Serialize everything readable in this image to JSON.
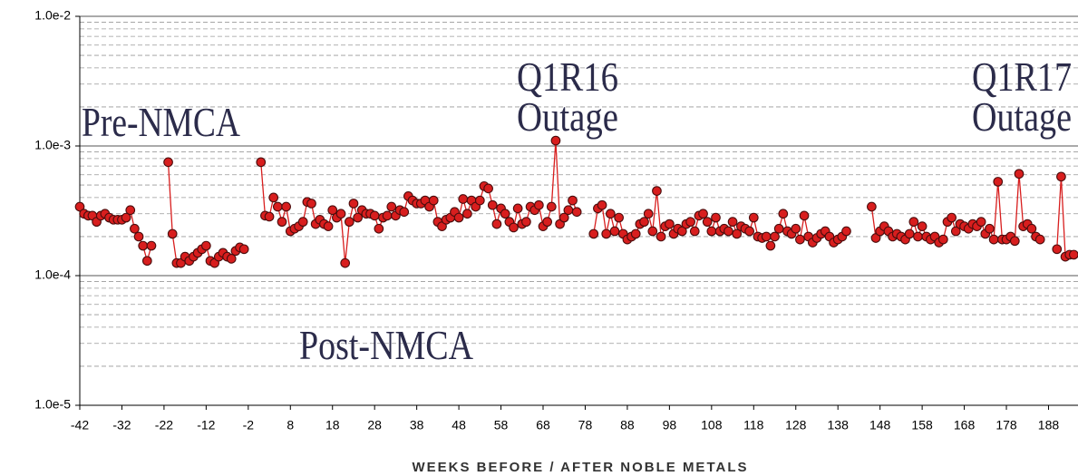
{
  "chart_data": {
    "type": "line",
    "x_label": "WEEKS BEFORE / AFTER NOBLE METALS",
    "xlim": [
      -42,
      195
    ],
    "xticks": [
      -42,
      -32,
      -22,
      -12,
      -2,
      8,
      18,
      28,
      38,
      48,
      58,
      68,
      78,
      88,
      98,
      108,
      118,
      128,
      138,
      148,
      158,
      168,
      178,
      188
    ],
    "ylim": [
      1e-05,
      0.01
    ],
    "yticks": [
      {
        "value": 1e-05,
        "label": "1.0e-5"
      },
      {
        "value": 0.0001,
        "label": "1.0e-4"
      },
      {
        "value": 0.001,
        "label": "1.0e-3"
      },
      {
        "value": 0.01,
        "label": "1.0e-2"
      }
    ],
    "log_y": true,
    "grid": true,
    "minor_grid": true,
    "annotations": [
      {
        "lines": [
          "Pre-NMCA"
        ]
      },
      {
        "lines": [
          "Post-NMCA"
        ]
      },
      {
        "lines": [
          "Q1R16",
          "Outage"
        ]
      },
      {
        "lines": [
          "Q1R17",
          "Outage"
        ]
      }
    ],
    "x": [
      -42,
      -41,
      -40,
      -39,
      -38,
      -37,
      -36,
      -35,
      -34,
      -33,
      -32,
      -31,
      -30,
      -29,
      -28,
      -27,
      -26,
      -25,
      -24,
      -23,
      -22,
      -21,
      -20,
      -19,
      -18,
      -17,
      -16,
      -15,
      -14,
      -13,
      -12,
      -11,
      -10,
      -9,
      -8,
      -7,
      -6,
      -5,
      -4,
      -3,
      -2,
      -1,
      0,
      1,
      2,
      3,
      4,
      5,
      6,
      7,
      8,
      9,
      10,
      11,
      12,
      13,
      14,
      15,
      16,
      17,
      18,
      19,
      20,
      21,
      22,
      23,
      24,
      25,
      26,
      27,
      28,
      29,
      30,
      31,
      32,
      33,
      34,
      35,
      36,
      37,
      38,
      39,
      40,
      41,
      42,
      43,
      44,
      45,
      46,
      47,
      48,
      49,
      50,
      51,
      52,
      53,
      54,
      55,
      56,
      57,
      58,
      59,
      60,
      61,
      62,
      63,
      64,
      65,
      66,
      67,
      68,
      69,
      70,
      71,
      72,
      73,
      74,
      75,
      76,
      77,
      78,
      79,
      80,
      81,
      82,
      83,
      84,
      85,
      86,
      87,
      88,
      89,
      90,
      91,
      92,
      93,
      94,
      95,
      96,
      97,
      98,
      99,
      100,
      101,
      102,
      103,
      104,
      105,
      106,
      107,
      108,
      109,
      110,
      111,
      112,
      113,
      114,
      115,
      116,
      117,
      118,
      119,
      120,
      121,
      122,
      123,
      124,
      125,
      126,
      127,
      128,
      129,
      130,
      131,
      132,
      133,
      134,
      135,
      136,
      137,
      138,
      139,
      140,
      141,
      142,
      143,
      144,
      145,
      146,
      147,
      148,
      149,
      150,
      151,
      152,
      153,
      154,
      155,
      156,
      157,
      158,
      159,
      160,
      161,
      162,
      163,
      164,
      165,
      166,
      167,
      168,
      169,
      170,
      171,
      172,
      173,
      174,
      175,
      176,
      177,
      178,
      179,
      180,
      181,
      182,
      183,
      184,
      185,
      186,
      187,
      188,
      189,
      190,
      191,
      192,
      193,
      194
    ],
    "series": [
      {
        "color": "#d81e1e",
        "values": [
          0.00034,
          0.0003,
          0.00029,
          0.00029,
          0.00026,
          0.00029,
          0.0003,
          0.00028,
          0.00027,
          0.00027,
          0.00027,
          0.00028,
          0.00032,
          0.00023,
          0.0002,
          0.00017,
          0.00013,
          0.00017,
          null,
          null,
          null,
          0.00075,
          0.00021,
          0.000125,
          0.000125,
          0.00014,
          0.00013,
          0.00014,
          0.00015,
          0.00016,
          0.00017,
          0.00013,
          0.000125,
          0.00014,
          0.00015,
          0.00014,
          0.000135,
          0.000155,
          0.000165,
          0.00016,
          null,
          null,
          null,
          0.00075,
          0.00029,
          0.000285,
          0.0004,
          0.00034,
          0.00026,
          0.00034,
          0.00022,
          0.00023,
          0.00024,
          0.00026,
          0.00037,
          0.00036,
          0.00025,
          0.00027,
          0.00025,
          0.00024,
          0.00032,
          0.00028,
          0.0003,
          0.000125,
          0.00026,
          0.00036,
          0.00028,
          0.00032,
          0.0003,
          0.0003,
          0.00029,
          0.00023,
          0.00028,
          0.00029,
          0.00034,
          0.00029,
          0.00032,
          0.00031,
          0.00041,
          0.00038,
          0.00036,
          0.00036,
          0.00038,
          0.00034,
          0.00038,
          0.00026,
          0.00024,
          0.00027,
          0.00028,
          0.00031,
          0.00028,
          0.00039,
          0.0003,
          0.00038,
          0.00034,
          0.00038,
          0.00049,
          0.00047,
          0.00035,
          0.00025,
          0.00033,
          0.0003,
          0.00026,
          0.000235,
          0.00033,
          0.00025,
          0.00026,
          0.00034,
          0.00032,
          0.00035,
          0.00024,
          0.00026,
          0.00034,
          0.0011,
          0.00025,
          0.00028,
          0.00032,
          0.00038,
          0.00031,
          null,
          null,
          null,
          0.00021,
          0.00033,
          0.00035,
          0.00021,
          0.0003,
          0.00022,
          0.00028,
          0.00021,
          0.00019,
          0.0002,
          0.00021,
          0.00025,
          0.00026,
          0.0003,
          0.00022,
          0.00045,
          0.0002,
          0.00024,
          0.00025,
          0.00021,
          0.00023,
          0.00022,
          0.00025,
          0.00026,
          0.00022,
          0.00029,
          0.0003,
          0.00026,
          0.00022,
          0.00028,
          0.00022,
          0.00023,
          0.00022,
          0.00026,
          0.00021,
          0.00024,
          0.00023,
          0.00022,
          0.00028,
          0.0002,
          0.000195,
          0.0002,
          0.00017,
          0.0002,
          0.00023,
          0.0003,
          0.00022,
          0.00021,
          0.00023,
          0.00019,
          0.00029,
          0.0002,
          0.00018,
          0.000195,
          0.00021,
          0.00022,
          0.0002,
          0.00018,
          0.00019,
          0.0002,
          0.00022,
          null,
          null,
          null,
          null,
          null,
          0.00034,
          0.000195,
          0.00022,
          0.00024,
          0.00022,
          0.0002,
          0.00021,
          0.0002,
          0.00019,
          0.00021,
          0.00026,
          0.0002,
          0.00024,
          0.0002,
          0.00019,
          0.0002,
          0.00018,
          0.00019,
          0.00026,
          0.00028,
          0.00022,
          0.00025,
          0.00024,
          0.00023,
          0.00025,
          0.00024,
          0.00026,
          0.00021,
          0.00023,
          0.00019,
          0.00053,
          0.00019,
          0.00019,
          0.0002,
          0.000185,
          0.00061,
          0.00024,
          0.00025,
          0.00023,
          0.0002,
          0.00019,
          null,
          null,
          null,
          0.00016,
          0.00058,
          0.00014,
          0.000145,
          0.000145
        ]
      }
    ]
  }
}
